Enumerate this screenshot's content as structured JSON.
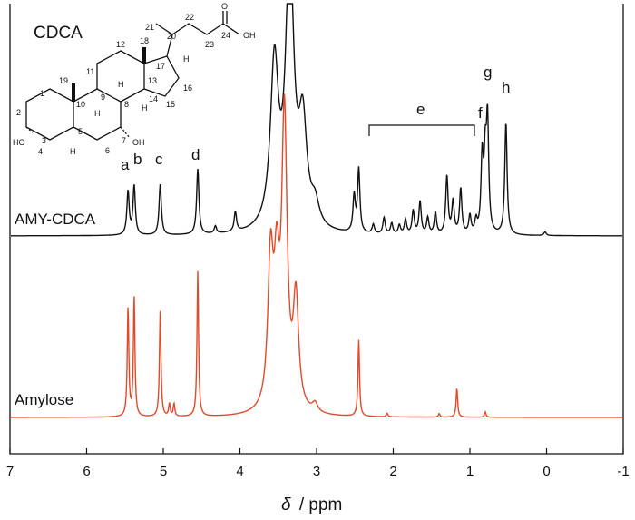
{
  "chart_data": {
    "type": "line",
    "title": "CDCA",
    "xlabel_symbol": "δ",
    "xlabel_unit": "/ ppm",
    "xlim": [
      7,
      -1
    ],
    "x_ticks": [
      "7",
      "6",
      "5",
      "4",
      "3",
      "2",
      "1",
      "0",
      "-1"
    ],
    "y_axis": "none",
    "series": [
      {
        "name": "AMY-CDCA",
        "color": "#111111",
        "peaks": [
          {
            "x": 5.46,
            "h": 0.24
          },
          {
            "x": 5.38,
            "h": 0.27
          },
          {
            "x": 5.04,
            "h": 0.28
          },
          {
            "x": 4.55,
            "h": 0.36
          },
          {
            "x": 4.32,
            "h": 0.04
          },
          {
            "x": 4.06,
            "h": 0.11
          },
          {
            "x": 3.55,
            "h": 0.9
          },
          {
            "x": 3.35,
            "h": 1.5
          },
          {
            "x": 3.18,
            "h": 0.55
          },
          {
            "x": 3.02,
            "h": 0.12
          },
          {
            "x": 2.51,
            "h": 0.2
          },
          {
            "x": 2.45,
            "h": 0.35
          },
          {
            "x": 2.26,
            "h": 0.05
          },
          {
            "x": 2.12,
            "h": 0.09
          },
          {
            "x": 2.02,
            "h": 0.06
          },
          {
            "x": 1.92,
            "h": 0.05
          },
          {
            "x": 1.84,
            "h": 0.08
          },
          {
            "x": 1.74,
            "h": 0.13
          },
          {
            "x": 1.65,
            "h": 0.18
          },
          {
            "x": 1.55,
            "h": 0.09
          },
          {
            "x": 1.45,
            "h": 0.12
          },
          {
            "x": 1.3,
            "h": 0.32
          },
          {
            "x": 1.22,
            "h": 0.18
          },
          {
            "x": 1.12,
            "h": 0.25
          },
          {
            "x": 1.0,
            "h": 0.1
          },
          {
            "x": 0.92,
            "h": 0.07
          },
          {
            "x": 0.84,
            "h": 0.41
          },
          {
            "x": 0.8,
            "h": 0.37
          },
          {
            "x": 0.77,
            "h": 0.6
          },
          {
            "x": 0.53,
            "h": 0.62
          },
          {
            "x": 0.02,
            "h": 0.02
          }
        ]
      },
      {
        "name": "Amylose",
        "color": "#e04a2a",
        "peaks": [
          {
            "x": 5.46,
            "h": 0.6
          },
          {
            "x": 5.38,
            "h": 0.66
          },
          {
            "x": 5.04,
            "h": 0.59
          },
          {
            "x": 4.92,
            "h": 0.07
          },
          {
            "x": 4.86,
            "h": 0.07
          },
          {
            "x": 4.55,
            "h": 0.8
          },
          {
            "x": 3.6,
            "h": 0.8
          },
          {
            "x": 3.52,
            "h": 0.65
          },
          {
            "x": 3.42,
            "h": 1.6
          },
          {
            "x": 3.27,
            "h": 0.6
          },
          {
            "x": 3.02,
            "h": 0.05
          },
          {
            "x": 2.45,
            "h": 0.42
          },
          {
            "x": 2.08,
            "h": 0.02
          },
          {
            "x": 1.4,
            "h": 0.02
          },
          {
            "x": 1.17,
            "h": 0.16
          },
          {
            "x": 0.8,
            "h": 0.03
          }
        ]
      }
    ],
    "annotations": {
      "peak_labels": [
        {
          "text": "a",
          "x": 5.46
        },
        {
          "text": "b",
          "x": 5.38
        },
        {
          "text": "c",
          "x": 5.04
        },
        {
          "text": "d",
          "x": 4.55
        },
        {
          "text": "f",
          "x": 0.84
        },
        {
          "text": "g",
          "x": 0.77
        },
        {
          "text": "h",
          "x": 0.53
        }
      ],
      "bracket_label": "e",
      "bracket_range": [
        2.35,
        0.95
      ]
    },
    "molecule": {
      "numbers": [
        "1",
        "2",
        "3",
        "4",
        "5",
        "6",
        "7",
        "8",
        "9",
        "10",
        "11",
        "12",
        "13",
        "14",
        "15",
        "16",
        "17",
        "18",
        "19",
        "20",
        "21",
        "22",
        "23",
        "24"
      ],
      "h_label": "H",
      "o_label": "O",
      "oh_label": "OH",
      "ho_label": "HO"
    }
  }
}
